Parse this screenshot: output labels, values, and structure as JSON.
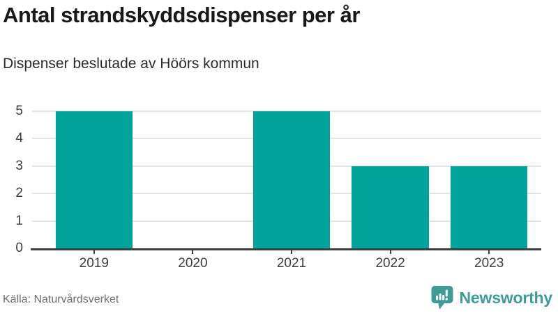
{
  "header": {
    "title": "Antal strandskyddsdispenser per år",
    "subtitle": "Dispenser beslutade av Höörs kommun"
  },
  "chart_data": {
    "type": "bar",
    "title": "Antal strandskyddsdispenser per år",
    "subtitle": "Dispenser beslutade av Höörs kommun",
    "categories": [
      "2019",
      "2020",
      "2021",
      "2022",
      "2023"
    ],
    "values": [
      5,
      0,
      5,
      3,
      3
    ],
    "xlabel": "",
    "ylabel": "",
    "ylim": [
      0,
      5
    ],
    "yticks": [
      0,
      1,
      2,
      3,
      4,
      5
    ],
    "grid": true,
    "legend": false,
    "bar_color": "#00a49b"
  },
  "footer": {
    "source": "Källa: Naturvårdsverket",
    "logo_text": "Newsworthy"
  },
  "colors": {
    "bar": "#00a49b",
    "axis": "#3d3d3d",
    "gridline": "#e4e4e4",
    "title": "#191919",
    "subtitle": "#2b2b2b",
    "source_text": "#6f6f6f",
    "logo": "#3f9b94"
  }
}
